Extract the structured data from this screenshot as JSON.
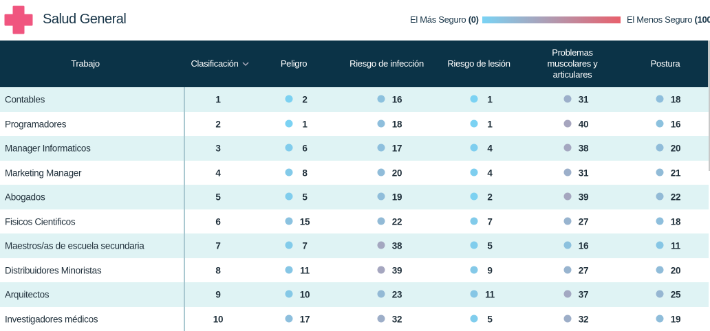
{
  "header": {
    "title": "Salud General"
  },
  "legend": {
    "low_label": "El Más Seguro",
    "low": {
      "value": 0,
      "label": "(0)"
    },
    "high_label": "El Menos Seguro",
    "high": {
      "value": 100,
      "label": "(100"
    },
    "colors": [
      "#7ad3f4",
      "#e8606c"
    ]
  },
  "table": {
    "columns": [
      "Trabajo",
      "Clasificación",
      "Peligro",
      "Riesgo de infección",
      "Riesgo de lesión",
      "Problemas muscolares y articulares",
      "Postura"
    ],
    "rows": [
      [
        "Contables",
        1,
        2,
        16,
        1,
        31,
        18
      ],
      [
        "Programadores",
        2,
        1,
        18,
        1,
        40,
        16
      ],
      [
        "Manager Informaticos",
        3,
        6,
        17,
        4,
        38,
        20
      ],
      [
        "Marketing Manager",
        4,
        8,
        20,
        4,
        31,
        21
      ],
      [
        "Abogados",
        5,
        5,
        19,
        2,
        39,
        22
      ],
      [
        "Fisicos Cientificos",
        6,
        15,
        22,
        7,
        27,
        18
      ],
      [
        "Maestros/as de escuela secundaria",
        7,
        7,
        38,
        5,
        16,
        11
      ],
      [
        "Distribuidores Minoristas",
        8,
        11,
        39,
        9,
        27,
        20
      ],
      [
        "Arquitectos",
        9,
        10,
        23,
        11,
        37,
        25
      ],
      [
        "Investigadores médicos",
        10,
        17,
        32,
        5,
        32,
        19
      ]
    ]
  }
}
